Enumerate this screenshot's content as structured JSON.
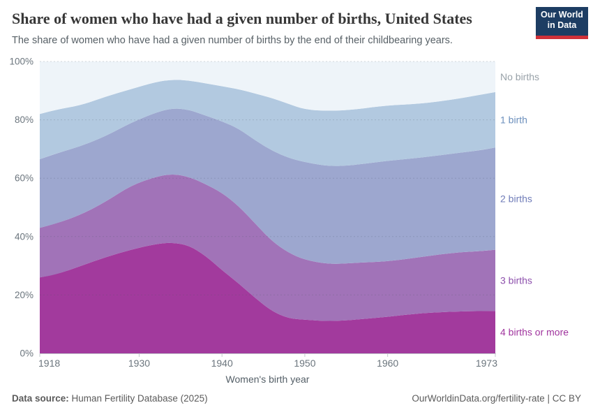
{
  "header": {
    "title": "Share of women who have had a given number of births, United States",
    "subtitle": "The share of women who have had a given number of births by the end of their childbearing years.",
    "logo": {
      "line1": "Our World",
      "line2": "in Data"
    }
  },
  "chart_data": {
    "type": "area",
    "stacked": true,
    "unit": "%",
    "xlabel": "Women's birth year",
    "ylabel": "",
    "ylim": [
      0,
      100
    ],
    "grid": true,
    "legend_position": "right-inline",
    "x_ticks": [
      1918,
      1930,
      1940,
      1950,
      1960,
      1973
    ],
    "y_ticks": [
      0,
      20,
      40,
      60,
      80,
      100
    ],
    "x": [
      1918,
      1920,
      1923,
      1926,
      1929,
      1932,
      1934,
      1936,
      1938,
      1940,
      1942,
      1944,
      1946,
      1948,
      1950,
      1953,
      1956,
      1960,
      1964,
      1968,
      1971,
      1973
    ],
    "series": [
      {
        "name": "4 births or more",
        "color": "#a23a9d",
        "label_color": "#a0349e",
        "values": [
          26.0,
          27.0,
          30.0,
          33.0,
          35.5,
          37.5,
          38.0,
          37.0,
          33.5,
          28.5,
          24.0,
          19.0,
          14.5,
          12.0,
          11.5,
          11.0,
          11.5,
          12.5,
          13.8,
          14.3,
          14.5,
          14.5
        ]
      },
      {
        "name": "3 births",
        "color": "#a173b8",
        "label_color": "#8d50ac",
        "values": [
          17.0,
          17.5,
          17.5,
          19.0,
          22.0,
          23.0,
          23.5,
          23.5,
          24.5,
          26.5,
          26.5,
          25.5,
          24.0,
          22.5,
          20.5,
          19.5,
          19.5,
          19.0,
          19.2,
          20.2,
          20.5,
          21.0
        ]
      },
      {
        "name": "2 births",
        "color": "#9da7cf",
        "label_color": "#6f7cb8",
        "values": [
          23.5,
          24.0,
          23.5,
          22.5,
          21.5,
          22.0,
          22.5,
          23.0,
          23.5,
          24.5,
          26.5,
          28.5,
          31.0,
          32.5,
          33.5,
          33.5,
          33.5,
          34.5,
          34.0,
          34.0,
          34.5,
          35.0
        ]
      },
      {
        "name": "1 birth",
        "color": "#b2c9e0",
        "label_color": "#6b8fbc",
        "values": [
          15.5,
          15.0,
          14.0,
          13.5,
          11.5,
          10.5,
          9.8,
          10.0,
          11.0,
          12.0,
          13.5,
          16.0,
          18.0,
          18.5,
          18.0,
          19.0,
          19.0,
          19.0,
          18.5,
          18.5,
          19.0,
          19.0
        ]
      },
      {
        "name": "No births",
        "color": "#eef4f9",
        "label_color": "#98a1a8",
        "values": [
          18.0,
          16.5,
          15.0,
          12.0,
          9.5,
          7.0,
          6.2,
          6.5,
          7.5,
          8.5,
          9.5,
          11.0,
          12.5,
          14.5,
          16.5,
          17.0,
          16.5,
          15.0,
          14.5,
          13.0,
          11.5,
          10.5
        ]
      }
    ]
  },
  "footer": {
    "source_label": "Data source:",
    "source_value": " Human Fertility Database (2025)",
    "credit": "OurWorldinData.org/fertility-rate | CC BY"
  }
}
